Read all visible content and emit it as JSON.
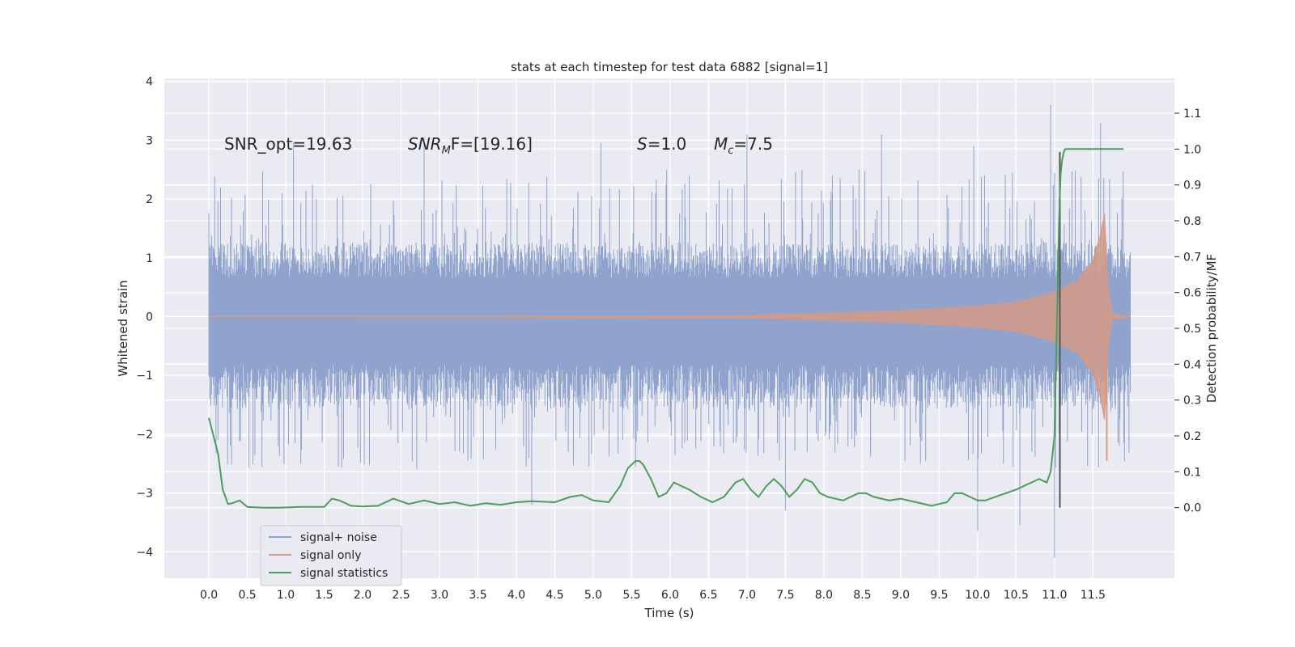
{
  "chart_data": {
    "type": "line",
    "title": "stats at each timestep for test data 6882 [signal=1]",
    "xlabel": "Time (s)",
    "ylabel": "Whitened strain",
    "ylabel_right": "Detection probability/MF",
    "xlim": [
      -0.58,
      12.56
    ],
    "ylim": [
      -4.45,
      4.05
    ],
    "ylim_right": [
      -0.197,
      1.197
    ],
    "x_ticks": [
      0.0,
      0.5,
      1.0,
      1.5,
      2.0,
      2.5,
      3.0,
      3.5,
      4.0,
      4.5,
      5.0,
      5.5,
      6.0,
      6.5,
      7.0,
      7.5,
      8.0,
      8.5,
      9.0,
      9.5,
      10.0,
      10.5,
      11.0,
      11.5
    ],
    "x_tick_labels": [
      "0.0",
      "0.5",
      "1.0",
      "1.5",
      "2.0",
      "2.5",
      "3.0",
      "3.5",
      "4.0",
      "4.5",
      "5.0",
      "5.5",
      "6.0",
      "6.5",
      "7.0",
      "7.5",
      "8.0",
      "8.5",
      "9.0",
      "9.5",
      "10.0",
      "10.5",
      "11.0",
      "11.5"
    ],
    "y_ticks": [
      4,
      3,
      2,
      1,
      0,
      -1,
      -2,
      -3,
      -4
    ],
    "y_tick_labels": [
      "4",
      "3",
      "2",
      "1",
      "0",
      "−1",
      "−2",
      "−3",
      "−4"
    ],
    "y_ticks_right": [
      1.1,
      1.0,
      0.9,
      0.8,
      0.7,
      0.6,
      0.5,
      0.4,
      0.3,
      0.2,
      0.1,
      0.0
    ],
    "y_tick_labels_right": [
      "1.1",
      "1.0",
      "0.9",
      "0.8",
      "0.7",
      "0.6",
      "0.5",
      "0.4",
      "0.3",
      "0.2",
      "0.1",
      "0.0"
    ],
    "grid": true,
    "legend_position": "lower-left",
    "annotations": {
      "snr_opt": "SNR_opt=19.63",
      "snr_mf_main": "SNR",
      "snr_mf_sub": "M",
      "snr_mf_rest": "F=[19.16]",
      "s_main": "S",
      "s_rest": "=1.0",
      "mc_main": "M",
      "mc_sub": "c",
      "mc_rest": "=7.5"
    },
    "marker_line": {
      "x": 11.07,
      "y_range": [
        -3.25,
        2.8
      ],
      "color": "#555555"
    },
    "series": [
      {
        "name": "signal+ noise",
        "color": "#8fa3cc",
        "x_range": [
          0.0,
          11.99
        ],
        "envelope": {
          "typical_max": 1.2,
          "typical_min": -1.5,
          "peak_max": 3.6,
          "peak_min": -4.1
        }
      },
      {
        "name": "signal only",
        "color": "#d39a86",
        "x_range": [
          0.0,
          11.99
        ],
        "envelope": {
          "x": [
            0.0,
            7.0,
            8.0,
            9.0,
            10.0,
            10.5,
            11.0,
            11.3,
            11.5,
            11.6,
            11.65,
            11.7,
            11.75,
            11.99
          ],
          "amplitude": [
            0.0,
            0.02,
            0.06,
            0.1,
            0.18,
            0.25,
            0.42,
            0.62,
            0.95,
            1.4,
            1.75,
            0.5,
            0.05,
            0.0
          ],
          "peak_min": -2.45
        }
      },
      {
        "name": "signal statistics",
        "color": "#4a9e5c",
        "axis": "right",
        "x": [
          0.0,
          0.12,
          0.18,
          0.25,
          0.3,
          0.4,
          0.5,
          0.7,
          0.9,
          1.2,
          1.5,
          1.6,
          1.7,
          1.85,
          2.0,
          2.2,
          2.4,
          2.6,
          2.8,
          3.0,
          3.2,
          3.4,
          3.6,
          3.8,
          4.0,
          4.2,
          4.5,
          4.7,
          4.85,
          5.0,
          5.2,
          5.35,
          5.45,
          5.55,
          5.6,
          5.65,
          5.75,
          5.85,
          5.95,
          6.05,
          6.15,
          6.25,
          6.4,
          6.55,
          6.7,
          6.85,
          6.95,
          7.05,
          7.15,
          7.25,
          7.35,
          7.45,
          7.55,
          7.65,
          7.75,
          7.85,
          7.95,
          8.05,
          8.25,
          8.45,
          8.55,
          8.65,
          8.85,
          9.0,
          9.2,
          9.4,
          9.6,
          9.7,
          9.8,
          9.9,
          10.0,
          10.1,
          10.3,
          10.5,
          10.7,
          10.8,
          10.9,
          10.95,
          11.0,
          11.03,
          11.06,
          11.08,
          11.1,
          11.12,
          11.14,
          11.18,
          11.3,
          11.5,
          11.7,
          11.9
        ],
        "values": [
          0.25,
          0.15,
          0.05,
          0.01,
          0.012,
          0.02,
          0.002,
          0.0,
          0.0,
          0.002,
          0.002,
          0.025,
          0.02,
          0.005,
          0.003,
          0.005,
          0.025,
          0.01,
          0.02,
          0.01,
          0.015,
          0.005,
          0.012,
          0.008,
          0.015,
          0.018,
          0.015,
          0.03,
          0.035,
          0.02,
          0.015,
          0.06,
          0.11,
          0.13,
          0.13,
          0.12,
          0.08,
          0.03,
          0.04,
          0.07,
          0.06,
          0.05,
          0.03,
          0.015,
          0.03,
          0.07,
          0.08,
          0.05,
          0.03,
          0.06,
          0.08,
          0.06,
          0.03,
          0.05,
          0.08,
          0.07,
          0.04,
          0.03,
          0.02,
          0.04,
          0.04,
          0.03,
          0.02,
          0.025,
          0.015,
          0.005,
          0.015,
          0.04,
          0.04,
          0.03,
          0.02,
          0.02,
          0.035,
          0.05,
          0.07,
          0.08,
          0.07,
          0.1,
          0.2,
          0.5,
          0.8,
          0.93,
          0.97,
          0.99,
          1.0,
          1.0,
          1.0,
          1.0,
          1.0,
          1.0
        ]
      }
    ]
  }
}
